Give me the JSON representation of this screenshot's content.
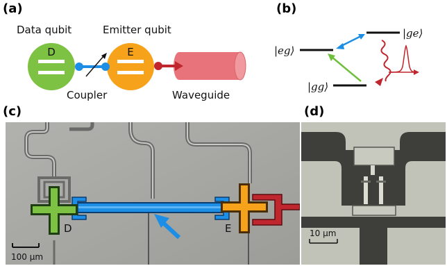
{
  "panels": {
    "a": {
      "label": "(a)",
      "data_qubit": "Data qubit",
      "emitter_qubit": "Emitter qubit",
      "d_letter": "D",
      "e_letter": "E",
      "coupler": "Coupler",
      "waveguide": "Waveguide",
      "colors": {
        "data": "#7dc242",
        "emitter": "#f7a21b",
        "coupler": "#1d8ee6",
        "waveguide": "#e8737a",
        "arrow": "#c0262d"
      }
    },
    "b": {
      "label": "(b)",
      "state_eg": "|eg⟩",
      "state_ge": "|ge⟩",
      "state_gg": "|gg⟩",
      "colors": {
        "blue": "#1d8ee6",
        "green": "#6fbf3c",
        "red": "#c0262d"
      }
    },
    "c": {
      "label": "(c)",
      "d_letter": "D",
      "e_letter": "E",
      "scale_text": "100 µm"
    },
    "d": {
      "label": "(d)",
      "scale_text": "10 µm"
    }
  }
}
